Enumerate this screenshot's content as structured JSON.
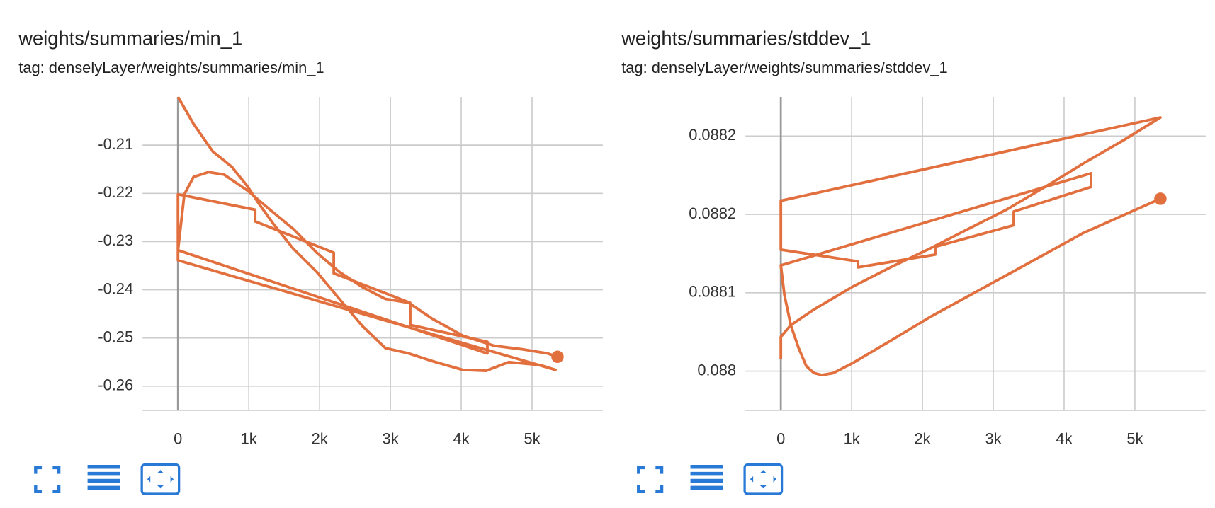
{
  "chart_data": [
    {
      "type": "line",
      "title": "weights/summaries/min_1",
      "subtitle": "tag: denselyLayer/weights/summaries/min_1",
      "x": [
        0,
        220,
        490,
        760,
        980,
        1140,
        1360,
        1630,
        1960,
        2280,
        2610,
        2930,
        3260,
        3590,
        4020,
        4350,
        4670,
        5110,
        5330,
        0,
        0,
        1090,
        1090,
        2200,
        2200,
        3280,
        3280,
        4370,
        4370,
        0,
        90,
        220,
        430,
        650,
        980,
        1300,
        1630,
        1960,
        2280,
        2610,
        2930,
        3260,
        3590,
        4020,
        4460,
        4890,
        5220,
        5360
      ],
      "values": [
        -0.2,
        -0.2056,
        -0.2113,
        -0.2145,
        -0.2185,
        -0.2221,
        -0.2266,
        -0.2315,
        -0.2363,
        -0.2419,
        -0.2476,
        -0.2521,
        -0.2532,
        -0.2548,
        -0.2566,
        -0.2568,
        -0.255,
        -0.2556,
        -0.2566,
        -0.2339,
        -0.2202,
        -0.2234,
        -0.2258,
        -0.2323,
        -0.2366,
        -0.2427,
        -0.2473,
        -0.2508,
        -0.2532,
        -0.2318,
        -0.2202,
        -0.2166,
        -0.2156,
        -0.2161,
        -0.2194,
        -0.2234,
        -0.2274,
        -0.2323,
        -0.2363,
        -0.2395,
        -0.2419,
        -0.2427,
        -0.246,
        -0.2495,
        -0.2516,
        -0.2524,
        -0.2532,
        -0.2539
      ],
      "color": "#e2703f",
      "xlim": [
        -500,
        6000
      ],
      "ylim": [
        -0.265,
        -0.2
      ],
      "xticks": [
        0,
        {
          "value": 1000,
          "label": "1k"
        },
        {
          "value": 2000,
          "label": "2k"
        },
        {
          "value": 3000,
          "label": "3k"
        },
        {
          "value": 4000,
          "label": "4k"
        },
        {
          "value": 5000,
          "label": "5k"
        }
      ],
      "yticks": [
        -0.21,
        -0.22,
        -0.23,
        -0.24,
        -0.25,
        -0.26
      ],
      "grid": true
    },
    {
      "type": "line",
      "title": "weights/summaries/stddev_1",
      "subtitle": "tag: denselyLayer/weights/summaries/stddev_1",
      "x": [
        0,
        0,
        140,
        470,
        1010,
        1550,
        2100,
        2640,
        3190,
        3730,
        4270,
        4820,
        5360,
        0,
        0,
        1090,
        1090,
        2180,
        2180,
        3290,
        3290,
        4380,
        4380,
        0,
        50,
        140,
        250,
        360,
        470,
        580,
        740,
        1010,
        1550,
        2100,
        3190,
        4270,
        5360
      ],
      "values": [
        0.088012,
        0.088035,
        0.088047,
        0.088063,
        0.088086,
        0.088106,
        0.088125,
        0.088145,
        0.088165,
        0.088188,
        0.088212,
        0.088235,
        0.088259,
        0.088174,
        0.088124,
        0.088112,
        0.088106,
        0.088119,
        0.088127,
        0.088149,
        0.088163,
        0.088188,
        0.088202,
        0.088108,
        0.088078,
        0.088047,
        0.088024,
        0.088005,
        0.087998,
        0.087996,
        0.087998,
        0.088008,
        0.088031,
        0.088055,
        0.088098,
        0.088141,
        0.088176
      ],
      "color": "#e2703f",
      "xlim": [
        -500,
        6000
      ],
      "ylim": [
        0.08796,
        0.08828
      ],
      "xticks": [
        0,
        {
          "value": 1000,
          "label": "1k"
        },
        {
          "value": 2000,
          "label": "2k"
        },
        {
          "value": 3000,
          "label": "3k"
        },
        {
          "value": 4000,
          "label": "4k"
        },
        {
          "value": 5000,
          "label": "5k"
        }
      ],
      "yticks": [
        0.088,
        {
          "value": 0.08808,
          "label": "0.0881"
        },
        {
          "value": 0.08816,
          "label": "0.0882"
        },
        {
          "value": 0.08824,
          "label": "0.0882"
        }
      ],
      "grid": true
    }
  ]
}
